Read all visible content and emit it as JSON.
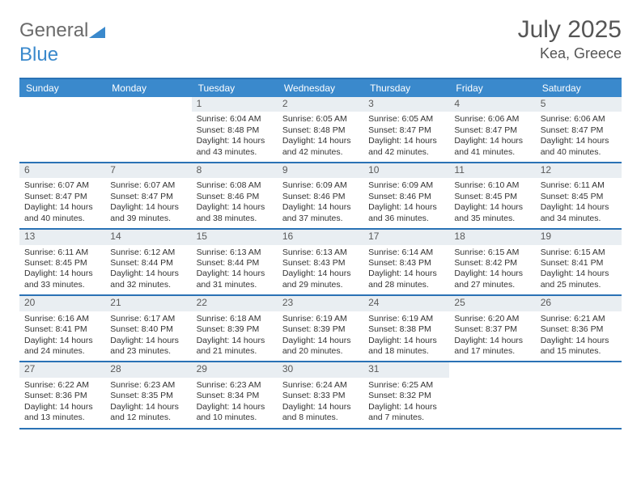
{
  "logo": {
    "part1": "General",
    "part2": "Blue"
  },
  "title": "July 2025",
  "location": "Kea, Greece",
  "colors": {
    "accent": "#3a89cc",
    "rule": "#2a72b5",
    "daybg": "#e9eef2",
    "text": "#333333",
    "muted": "#6b6b6b"
  },
  "daysOfWeek": [
    "Sunday",
    "Monday",
    "Tuesday",
    "Wednesday",
    "Thursday",
    "Friday",
    "Saturday"
  ],
  "startOffset": 2,
  "days": [
    {
      "n": 1,
      "sunrise": "6:04 AM",
      "sunset": "8:48 PM",
      "daylight": "14 hours and 43 minutes."
    },
    {
      "n": 2,
      "sunrise": "6:05 AM",
      "sunset": "8:48 PM",
      "daylight": "14 hours and 42 minutes."
    },
    {
      "n": 3,
      "sunrise": "6:05 AM",
      "sunset": "8:47 PM",
      "daylight": "14 hours and 42 minutes."
    },
    {
      "n": 4,
      "sunrise": "6:06 AM",
      "sunset": "8:47 PM",
      "daylight": "14 hours and 41 minutes."
    },
    {
      "n": 5,
      "sunrise": "6:06 AM",
      "sunset": "8:47 PM",
      "daylight": "14 hours and 40 minutes."
    },
    {
      "n": 6,
      "sunrise": "6:07 AM",
      "sunset": "8:47 PM",
      "daylight": "14 hours and 40 minutes."
    },
    {
      "n": 7,
      "sunrise": "6:07 AM",
      "sunset": "8:47 PM",
      "daylight": "14 hours and 39 minutes."
    },
    {
      "n": 8,
      "sunrise": "6:08 AM",
      "sunset": "8:46 PM",
      "daylight": "14 hours and 38 minutes."
    },
    {
      "n": 9,
      "sunrise": "6:09 AM",
      "sunset": "8:46 PM",
      "daylight": "14 hours and 37 minutes."
    },
    {
      "n": 10,
      "sunrise": "6:09 AM",
      "sunset": "8:46 PM",
      "daylight": "14 hours and 36 minutes."
    },
    {
      "n": 11,
      "sunrise": "6:10 AM",
      "sunset": "8:45 PM",
      "daylight": "14 hours and 35 minutes."
    },
    {
      "n": 12,
      "sunrise": "6:11 AM",
      "sunset": "8:45 PM",
      "daylight": "14 hours and 34 minutes."
    },
    {
      "n": 13,
      "sunrise": "6:11 AM",
      "sunset": "8:45 PM",
      "daylight": "14 hours and 33 minutes."
    },
    {
      "n": 14,
      "sunrise": "6:12 AM",
      "sunset": "8:44 PM",
      "daylight": "14 hours and 32 minutes."
    },
    {
      "n": 15,
      "sunrise": "6:13 AM",
      "sunset": "8:44 PM",
      "daylight": "14 hours and 31 minutes."
    },
    {
      "n": 16,
      "sunrise": "6:13 AM",
      "sunset": "8:43 PM",
      "daylight": "14 hours and 29 minutes."
    },
    {
      "n": 17,
      "sunrise": "6:14 AM",
      "sunset": "8:43 PM",
      "daylight": "14 hours and 28 minutes."
    },
    {
      "n": 18,
      "sunrise": "6:15 AM",
      "sunset": "8:42 PM",
      "daylight": "14 hours and 27 minutes."
    },
    {
      "n": 19,
      "sunrise": "6:15 AM",
      "sunset": "8:41 PM",
      "daylight": "14 hours and 25 minutes."
    },
    {
      "n": 20,
      "sunrise": "6:16 AM",
      "sunset": "8:41 PM",
      "daylight": "14 hours and 24 minutes."
    },
    {
      "n": 21,
      "sunrise": "6:17 AM",
      "sunset": "8:40 PM",
      "daylight": "14 hours and 23 minutes."
    },
    {
      "n": 22,
      "sunrise": "6:18 AM",
      "sunset": "8:39 PM",
      "daylight": "14 hours and 21 minutes."
    },
    {
      "n": 23,
      "sunrise": "6:19 AM",
      "sunset": "8:39 PM",
      "daylight": "14 hours and 20 minutes."
    },
    {
      "n": 24,
      "sunrise": "6:19 AM",
      "sunset": "8:38 PM",
      "daylight": "14 hours and 18 minutes."
    },
    {
      "n": 25,
      "sunrise": "6:20 AM",
      "sunset": "8:37 PM",
      "daylight": "14 hours and 17 minutes."
    },
    {
      "n": 26,
      "sunrise": "6:21 AM",
      "sunset": "8:36 PM",
      "daylight": "14 hours and 15 minutes."
    },
    {
      "n": 27,
      "sunrise": "6:22 AM",
      "sunset": "8:36 PM",
      "daylight": "14 hours and 13 minutes."
    },
    {
      "n": 28,
      "sunrise": "6:23 AM",
      "sunset": "8:35 PM",
      "daylight": "14 hours and 12 minutes."
    },
    {
      "n": 29,
      "sunrise": "6:23 AM",
      "sunset": "8:34 PM",
      "daylight": "14 hours and 10 minutes."
    },
    {
      "n": 30,
      "sunrise": "6:24 AM",
      "sunset": "8:33 PM",
      "daylight": "14 hours and 8 minutes."
    },
    {
      "n": 31,
      "sunrise": "6:25 AM",
      "sunset": "8:32 PM",
      "daylight": "14 hours and 7 minutes."
    }
  ],
  "labels": {
    "sunrise": "Sunrise:",
    "sunset": "Sunset:",
    "daylight": "Daylight:"
  }
}
